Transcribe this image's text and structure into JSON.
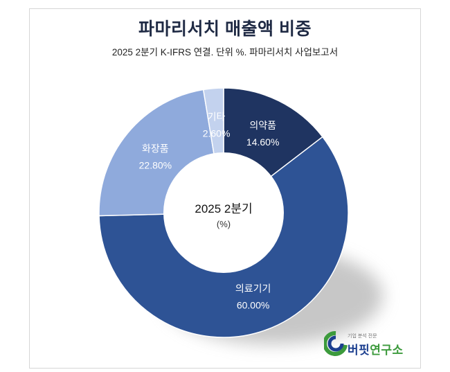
{
  "title": "파마리서치 매출액 비중",
  "subtitle": "2025 2분기 K-IFRS 연결. 단위 %. 파마리서치 사업보고서",
  "center": {
    "line1": "2025 2분기",
    "line2": "(%)"
  },
  "logo": {
    "tagline": "기업 분석 전문",
    "name_part1": "버핏",
    "name_part2": "연구소"
  },
  "chart_data": {
    "type": "pie",
    "donut": true,
    "categories": [
      "의약품",
      "의료기기",
      "화장품",
      "기타"
    ],
    "values": [
      14.6,
      60.0,
      22.8,
      2.6
    ],
    "value_labels": [
      "14.60%",
      "60.00%",
      "22.80%",
      "2.60%"
    ],
    "colors": [
      "#1f3461",
      "#2e5395",
      "#8faadc",
      "#c3d2ee"
    ],
    "start": "12 o'clock, clockwise"
  }
}
